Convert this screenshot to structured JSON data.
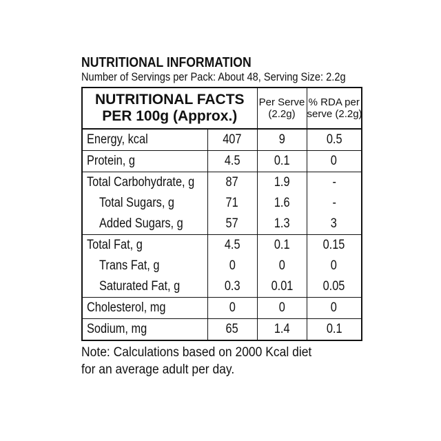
{
  "header": {
    "title": "NUTRITIONAL INFORMATION",
    "subtitle": "Number of Servings per Pack: About 48, Serving Size: 2.2g"
  },
  "table": {
    "col1_line1": "NUTRITIONAL FACTS",
    "col1_line2": "PER 100g (Approx.)",
    "col3_line1": "Per Serve",
    "col3_line2": "(2.2g)",
    "col4_line1": "% RDA per",
    "col4_line2": "serve (2.2g)",
    "rows": [
      {
        "label": "Energy, kcal",
        "per100": "407",
        "serve": "9",
        "rda": "0.5"
      },
      {
        "label": "Protein, g",
        "per100": "4.5",
        "serve": "0.1",
        "rda": "0"
      },
      {
        "label": "Total Carbohydrate, g",
        "per100": "87",
        "serve": "1.9",
        "rda": "-"
      },
      {
        "label": "Total Sugars, g",
        "per100": "71",
        "serve": "1.6",
        "rda": "-"
      },
      {
        "label": "Added Sugars, g",
        "per100": "57",
        "serve": "1.3",
        "rda": "3"
      },
      {
        "label": "Total Fat, g",
        "per100": "4.5",
        "serve": "0.1",
        "rda": "0.15"
      },
      {
        "label": "Trans Fat, g",
        "per100": "0",
        "serve": "0",
        "rda": "0"
      },
      {
        "label": "Saturated Fat, g",
        "per100": "0.3",
        "serve": "0.01",
        "rda": "0.05"
      },
      {
        "label": "Cholesterol, mg",
        "per100": "0",
        "serve": "0",
        "rda": "0"
      },
      {
        "label": "Sodium, mg",
        "per100": "65",
        "serve": "1.4",
        "rda": "0.1"
      }
    ]
  },
  "note": {
    "line1": "Note: Calculations based on 2000 Kcal diet",
    "line2": "for an average adult per day."
  }
}
